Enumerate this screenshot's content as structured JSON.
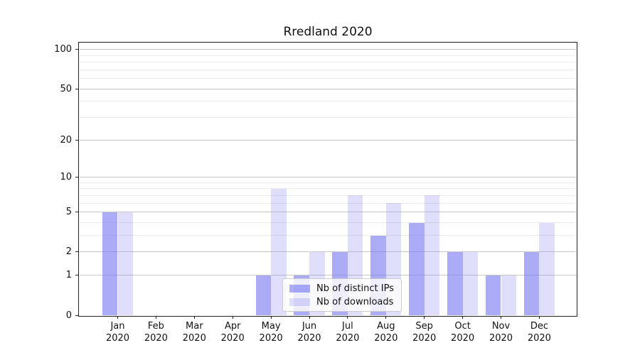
{
  "chart_data": {
    "type": "bar",
    "title": "Rredland 2020",
    "categories": [
      "Jan",
      "Feb",
      "Mar",
      "Apr",
      "May",
      "Jun",
      "Jul",
      "Aug",
      "Sep",
      "Oct",
      "Nov",
      "Dec"
    ],
    "year_label": "2020",
    "series": [
      {
        "name": "Nb of distinct IPs",
        "color": "rgba(120,120,240,0.62)",
        "values": [
          5,
          0,
          0,
          0,
          1,
          1,
          2,
          3,
          4,
          2,
          1,
          2
        ]
      },
      {
        "name": "Nb of downloads",
        "color": "rgba(120,120,240,0.24)",
        "values": [
          5,
          0,
          0,
          0,
          8,
          2,
          7,
          6,
          7,
          2,
          1,
          4
        ]
      }
    ],
    "yscale": "log10(1+x)",
    "ylim": [
      0,
      113
    ],
    "yticks_major": [
      0,
      1,
      2,
      5,
      10,
      20,
      50,
      100
    ],
    "yticks_minor": [
      3,
      4,
      6,
      7,
      8,
      9,
      30,
      40,
      60,
      70,
      80,
      90
    ],
    "grid": true,
    "legend_position": "lower center inside plot",
    "colors": {
      "grid_major": "#c9c9c9",
      "grid_minor": "#ececec",
      "axis": "#222222",
      "text": "#111111",
      "background": "#ffffff"
    }
  }
}
